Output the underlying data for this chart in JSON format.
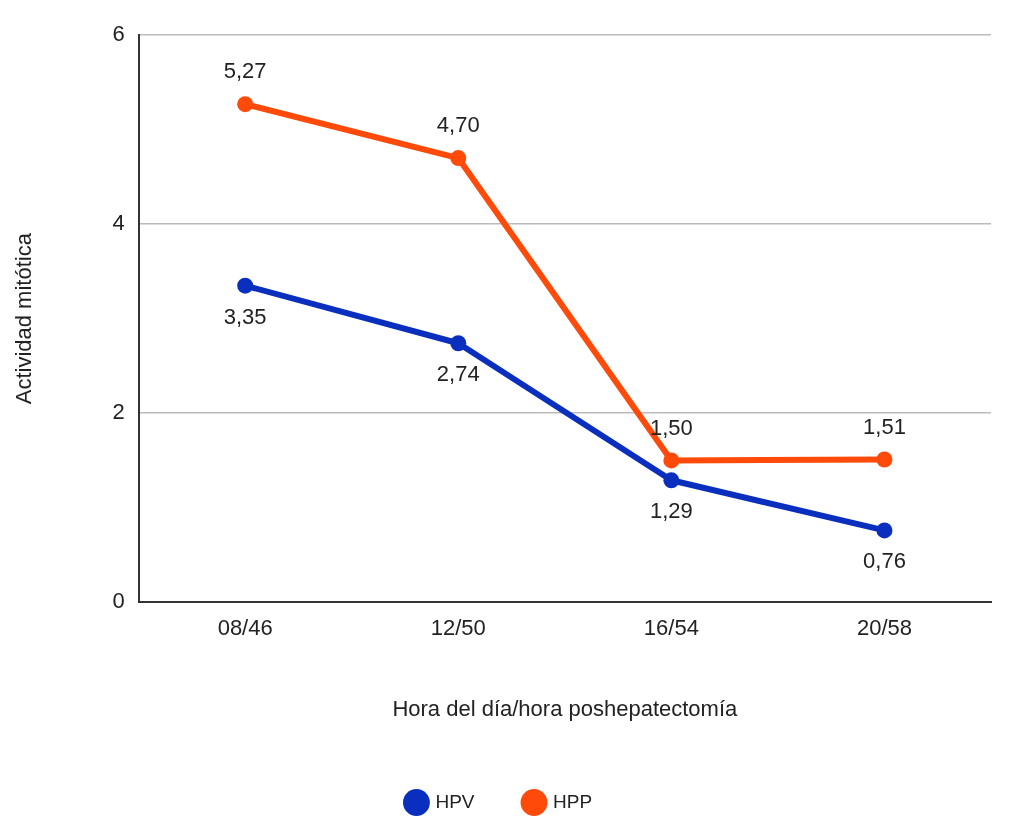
{
  "chart_data": {
    "type": "line",
    "xlabel": "Hora del día/hora poshepatectomía",
    "ylabel": "Actividad mitótica",
    "categories": [
      "08/46",
      "12/50",
      "16/54",
      "20/58"
    ],
    "series": [
      {
        "name": "HPV",
        "color": "#0a2fbf",
        "values": [
          3.35,
          2.74,
          1.29,
          0.76
        ],
        "value_labels": [
          "3,35",
          "2,74",
          "1,29",
          "0,76"
        ]
      },
      {
        "name": "HPP",
        "color": "#ff4a0a",
        "values": [
          5.27,
          4.7,
          1.5,
          1.51
        ],
        "value_labels": [
          "5,27",
          "4,70",
          "1,50",
          "1,51"
        ]
      }
    ],
    "ylim": [
      0,
      6
    ],
    "yticks": [
      0,
      2,
      4,
      6
    ],
    "grid": "y",
    "legend": "bottom",
    "marker": "circle",
    "line_style": "solid"
  }
}
